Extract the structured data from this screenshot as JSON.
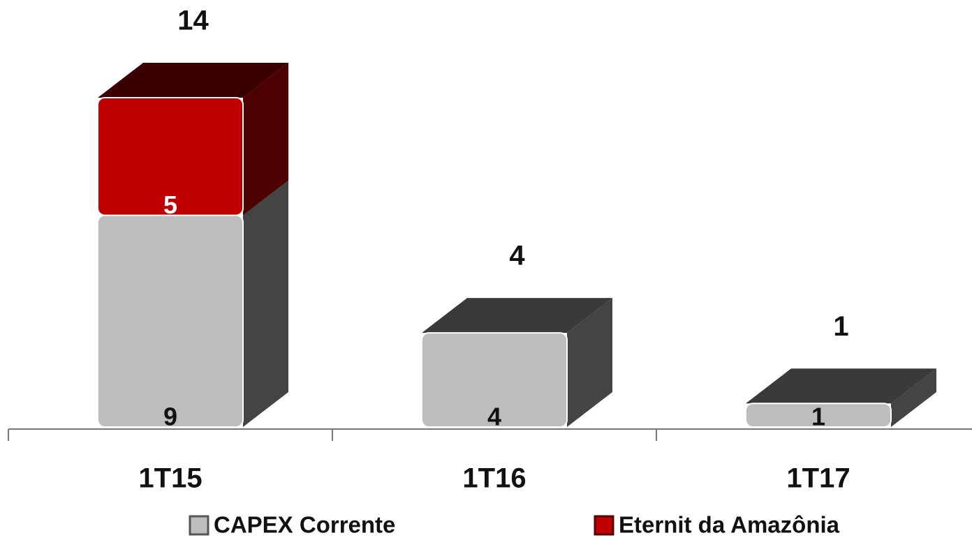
{
  "chart_data": {
    "type": "bar3d_stacked",
    "categories": [
      "1T15",
      "1T16",
      "1T17"
    ],
    "series": [
      {
        "name": "CAPEX Corrente",
        "color": "#bdbdbd",
        "values": [
          9,
          4,
          1
        ]
      },
      {
        "name": "Eternit da Amazônia",
        "color": "#c00000",
        "values": [
          5,
          null,
          null
        ]
      }
    ],
    "totals": [
      14,
      4,
      1
    ]
  }
}
